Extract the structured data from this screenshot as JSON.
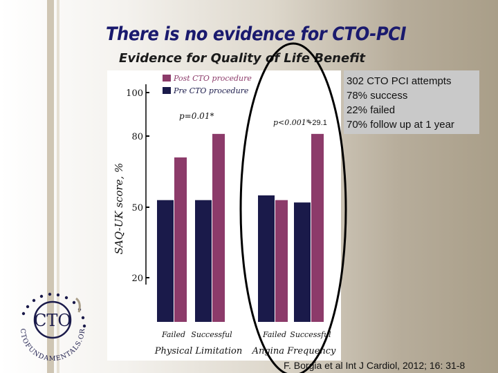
{
  "title": "There is no evidence for CTO-PCI",
  "subtitle": "Evidence for Quality of Life Benefit",
  "stats": [
    "302 CTO PCI attempts",
    "78% success",
    "22% failed",
    "70% follow up at 1 year"
  ],
  "citation": "F. Borgia et al Int J Cardiol, 2012; 16: 31-8",
  "logo": {
    "text": "CTO",
    "ring_text": "CTOFUNDAMENTALS.ORG"
  },
  "colors": {
    "post": "#8c3b6a",
    "pre": "#1a1a4a",
    "title": "#1a1a6e",
    "ellipse": "#000000"
  },
  "chart_data": {
    "type": "bar",
    "groups": [
      {
        "name": "Physical Limitation",
        "categories": [
          "Failed",
          "Successful"
        ],
        "annotation": "p=0.01*"
      },
      {
        "name": "Angina Frequency",
        "categories": [
          "Failed",
          "Successful"
        ],
        "annotation": "p<0.001*"
      }
    ],
    "series": [
      {
        "name": "Pre CTO procedure",
        "values": [
          53,
          53,
          55,
          52
        ]
      },
      {
        "name": "Post CTO procedure",
        "values": [
          71,
          81,
          53,
          81
        ]
      }
    ],
    "ylabel": "SAQ-UK score, %",
    "yticks": [
      20,
      50,
      80,
      100
    ],
    "ylim": [
      20,
      100
    ],
    "extra_annotation": "+29.1",
    "legend_position": "top-left"
  }
}
